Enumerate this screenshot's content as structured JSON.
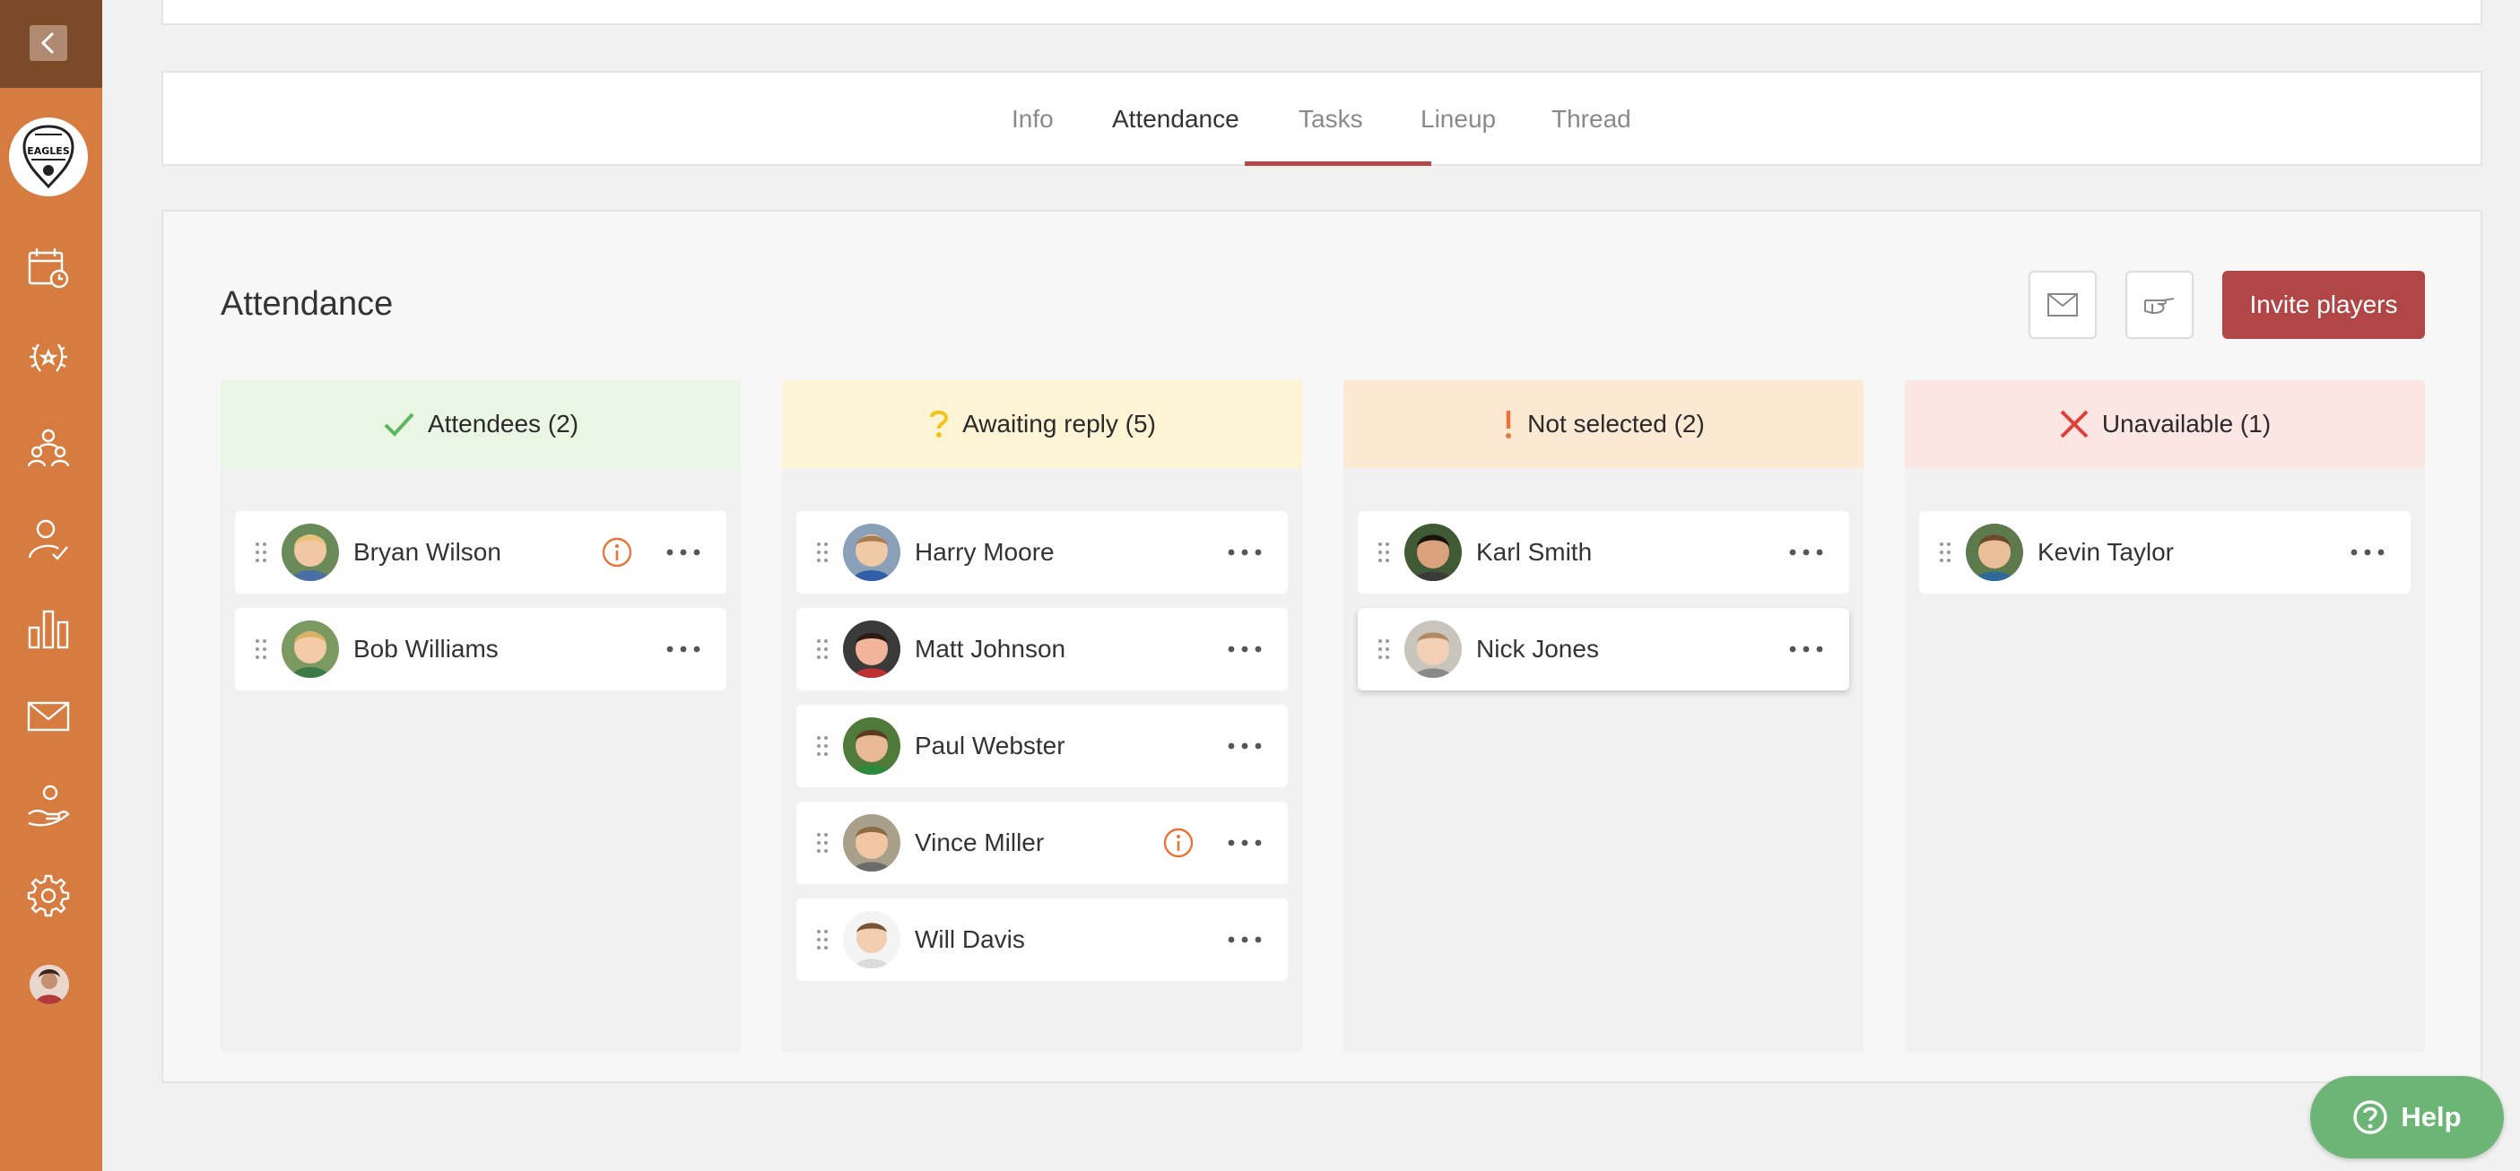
{
  "tabs": [
    {
      "label": "Info"
    },
    {
      "label": "Attendance"
    },
    {
      "label": "Tasks"
    },
    {
      "label": "Lineup"
    },
    {
      "label": "Thread"
    }
  ],
  "active_tab": "Attendance",
  "main": {
    "title": "Attendance",
    "invite_label": "Invite players",
    "mail_icon": "mail-icon",
    "remind_icon": "pointing-hand-icon"
  },
  "columns": [
    {
      "title": "Attendees (2)",
      "icon": "check-icon",
      "header_color": "#e8f6e3",
      "icon_color": "#5cb85c",
      "players": [
        {
          "name": "Bryan Wilson",
          "info": true
        },
        {
          "name": "Bob Williams",
          "info": false
        }
      ]
    },
    {
      "title": "Awaiting reply (5)",
      "icon": "question-icon",
      "header_color": "#fdf4d6",
      "icon_color": "#f0c419",
      "players": [
        {
          "name": "Harry Moore",
          "info": false
        },
        {
          "name": "Matt Johnson",
          "info": false
        },
        {
          "name": "Paul Webster",
          "info": false
        },
        {
          "name": "Vince Miller",
          "info": true
        },
        {
          "name": "Will Davis",
          "info": false
        }
      ]
    },
    {
      "title": "Not selected (2)",
      "icon": "exclamation-icon",
      "header_color": "#fce9d4",
      "icon_color": "#e8743b",
      "players": [
        {
          "name": "Karl Smith",
          "info": false
        },
        {
          "name": "Nick Jones",
          "info": false
        }
      ]
    },
    {
      "title": "Unavailable (1)",
      "icon": "x-icon",
      "header_color": "#fbe6e4",
      "icon_color": "#e0403a",
      "players": [
        {
          "name": "Kevin Taylor",
          "info": false
        }
      ]
    }
  ],
  "sidebar": {
    "logo_text": "EAGLES",
    "icons": [
      "calendar-clock-icon",
      "laurel-icon",
      "team-icon",
      "user-check-icon",
      "bar-chart-icon",
      "mail-icon",
      "hand-heart-icon",
      "gear-icon"
    ]
  },
  "help_label": "Help",
  "colors": {
    "sidebar": "#d67c41",
    "accent": "#b14646",
    "help": "#6db577",
    "info": "#e8743b"
  }
}
